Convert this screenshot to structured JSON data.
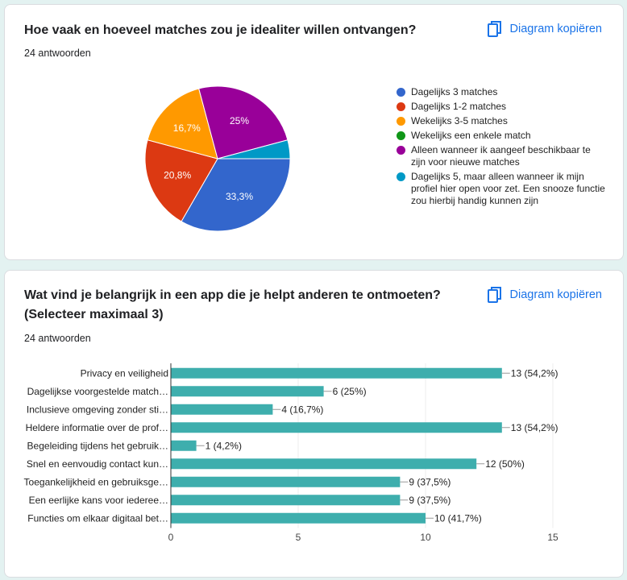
{
  "cards": [
    {
      "title": "Hoe vaak en hoeveel matches zou je idealiter willen ontvangen?",
      "responses": "24 antwoorden",
      "copy_label": "Diagram kopiëren",
      "copy_icon": "copy-icon"
    },
    {
      "title": "Wat vind je belangrijk in een app die je helpt anderen te ontmoeten? (Selecteer maximaal 3)",
      "responses": "24 antwoorden",
      "copy_label": "Diagram kopiëren",
      "copy_icon": "copy-icon"
    }
  ],
  "chart_data": [
    {
      "type": "pie",
      "legend_position": "right",
      "slices": [
        {
          "label": "Dagelijks 3 matches",
          "value": 8,
          "pct_label": "33,3%",
          "color": "#3366cc"
        },
        {
          "label": "Dagelijks 1-2 matches",
          "value": 5,
          "pct_label": "20,8%",
          "color": "#dc3912"
        },
        {
          "label": "Wekelijks 3-5 matches",
          "value": 4,
          "pct_label": "16,7%",
          "color": "#ff9900"
        },
        {
          "label": "Wekelijks een enkele match",
          "value": 0,
          "pct_label": "",
          "color": "#109618"
        },
        {
          "label": "Alleen wanneer ik aangeef beschikbaar te zijn voor nieuwe matches",
          "value": 6,
          "pct_label": "25%",
          "color": "#990099"
        },
        {
          "label": "Dagelijks 5, maar alleen wanneer ik mijn profiel hier open voor zet. Een snooze functie zou hierbij handig kunnen zijn",
          "value": 1,
          "pct_label": "",
          "color": "#0099c6"
        }
      ]
    },
    {
      "type": "bar",
      "orientation": "horizontal",
      "color": "#3eaead",
      "xlim": [
        0,
        15
      ],
      "xticks": [
        0,
        5,
        10,
        15
      ],
      "grid": true,
      "categories": [
        "Privacy en veiligheid",
        "Dagelijkse voorgestelde match…",
        "Inclusieve omgeving zonder sti…",
        "Heldere informatie over de prof…",
        "Begeleiding tijdens het gebruik…",
        "Snel en eenvoudig contact kun…",
        "Toegankelijkheid en gebruiksge…",
        "Een eerlijke kans voor iederee…",
        "Functies om elkaar digitaal bet…"
      ],
      "values": [
        13,
        6,
        4,
        13,
        1,
        12,
        9,
        9,
        10
      ],
      "data_labels": [
        "13 (54,2%)",
        "6 (25%)",
        "4 (16,7%)",
        "13 (54,2%)",
        "1 (4,2%)",
        "12 (50%)",
        "9 (37,5%)",
        "9 (37,5%)",
        "10 (41,7%)"
      ]
    }
  ]
}
